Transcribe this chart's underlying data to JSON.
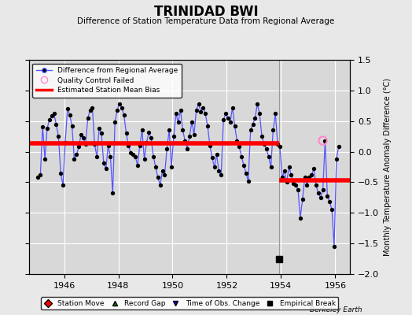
{
  "title": "TRINIDAD BWI",
  "subtitle": "Difference of Station Temperature Data from Regional Average",
  "ylabel": "Monthly Temperature Anomaly Difference (°C)",
  "background_color": "#e8e8e8",
  "plot_bg_color": "#d8d8d8",
  "grid_color": "#ffffff",
  "xlim": [
    1944.7,
    1956.55
  ],
  "ylim": [
    -2.0,
    1.5
  ],
  "yticks": [
    -2.0,
    -1.5,
    -1.0,
    -0.5,
    0.0,
    0.5,
    1.0,
    1.5
  ],
  "xticks": [
    1946,
    1948,
    1950,
    1952,
    1954,
    1956
  ],
  "break_year": 1953.92,
  "bias1": 0.13,
  "bias2": -0.47,
  "bias1_start": 1944.7,
  "bias1_end": 1953.92,
  "bias2_start": 1953.92,
  "bias2_end": 1956.55,
  "empirical_break_x": 1953.92,
  "empirical_break_y": -1.75,
  "qc_fail_x": 1955.54,
  "qc_fail_y": 0.18,
  "line_color": "#5555ff",
  "marker_color": "#000000",
  "bias_color": "#ff0000",
  "monthly_data": [
    [
      1945.042,
      -0.42
    ],
    [
      1945.125,
      -0.38
    ],
    [
      1945.208,
      0.41
    ],
    [
      1945.292,
      -0.12
    ],
    [
      1945.375,
      0.38
    ],
    [
      1945.458,
      0.52
    ],
    [
      1945.542,
      0.58
    ],
    [
      1945.625,
      0.62
    ],
    [
      1945.708,
      0.45
    ],
    [
      1945.792,
      0.25
    ],
    [
      1945.875,
      -0.35
    ],
    [
      1945.958,
      -0.55
    ],
    [
      1946.042,
      0.15
    ],
    [
      1946.125,
      0.7
    ],
    [
      1946.208,
      0.6
    ],
    [
      1946.292,
      0.42
    ],
    [
      1946.375,
      -0.12
    ],
    [
      1946.458,
      -0.05
    ],
    [
      1946.542,
      0.08
    ],
    [
      1946.625,
      0.28
    ],
    [
      1946.708,
      0.22
    ],
    [
      1946.792,
      0.12
    ],
    [
      1946.875,
      0.55
    ],
    [
      1946.958,
      0.68
    ],
    [
      1947.042,
      0.72
    ],
    [
      1947.125,
      0.12
    ],
    [
      1947.208,
      -0.08
    ],
    [
      1947.292,
      0.38
    ],
    [
      1947.375,
      0.3
    ],
    [
      1947.458,
      -0.18
    ],
    [
      1947.542,
      -0.28
    ],
    [
      1947.625,
      0.1
    ],
    [
      1947.708,
      -0.08
    ],
    [
      1947.792,
      -0.68
    ],
    [
      1947.875,
      0.48
    ],
    [
      1947.958,
      0.68
    ],
    [
      1948.042,
      0.78
    ],
    [
      1948.125,
      0.72
    ],
    [
      1948.208,
      0.6
    ],
    [
      1948.292,
      0.3
    ],
    [
      1948.375,
      0.1
    ],
    [
      1948.458,
      -0.02
    ],
    [
      1948.542,
      -0.05
    ],
    [
      1948.625,
      -0.08
    ],
    [
      1948.708,
      -0.22
    ],
    [
      1948.792,
      0.1
    ],
    [
      1948.875,
      0.35
    ],
    [
      1948.958,
      -0.12
    ],
    [
      1949.042,
      0.15
    ],
    [
      1949.125,
      0.32
    ],
    [
      1949.208,
      0.22
    ],
    [
      1949.292,
      -0.08
    ],
    [
      1949.375,
      -0.25
    ],
    [
      1949.458,
      -0.42
    ],
    [
      1949.542,
      -0.55
    ],
    [
      1949.625,
      -0.32
    ],
    [
      1949.708,
      -0.38
    ],
    [
      1949.792,
      0.05
    ],
    [
      1949.875,
      0.35
    ],
    [
      1949.958,
      -0.25
    ],
    [
      1950.042,
      0.25
    ],
    [
      1950.125,
      0.62
    ],
    [
      1950.208,
      0.48
    ],
    [
      1950.292,
      0.68
    ],
    [
      1950.375,
      0.35
    ],
    [
      1950.458,
      0.18
    ],
    [
      1950.542,
      0.05
    ],
    [
      1950.625,
      0.25
    ],
    [
      1950.708,
      0.48
    ],
    [
      1950.792,
      0.28
    ],
    [
      1950.875,
      0.68
    ],
    [
      1950.958,
      0.78
    ],
    [
      1951.042,
      0.65
    ],
    [
      1951.125,
      0.72
    ],
    [
      1951.208,
      0.62
    ],
    [
      1951.292,
      0.42
    ],
    [
      1951.375,
      0.1
    ],
    [
      1951.458,
      -0.1
    ],
    [
      1951.542,
      -0.25
    ],
    [
      1951.625,
      -0.05
    ],
    [
      1951.708,
      -0.32
    ],
    [
      1951.792,
      -0.38
    ],
    [
      1951.875,
      0.52
    ],
    [
      1951.958,
      0.62
    ],
    [
      1952.042,
      0.55
    ],
    [
      1952.125,
      0.48
    ],
    [
      1952.208,
      0.72
    ],
    [
      1952.292,
      0.42
    ],
    [
      1952.375,
      0.18
    ],
    [
      1952.458,
      0.08
    ],
    [
      1952.542,
      -0.08
    ],
    [
      1952.625,
      -0.22
    ],
    [
      1952.708,
      -0.35
    ],
    [
      1952.792,
      -0.48
    ],
    [
      1952.875,
      0.35
    ],
    [
      1952.958,
      0.45
    ],
    [
      1953.042,
      0.55
    ],
    [
      1953.125,
      0.78
    ],
    [
      1953.208,
      0.62
    ],
    [
      1953.292,
      0.25
    ],
    [
      1953.375,
      0.12
    ],
    [
      1953.458,
      0.05
    ],
    [
      1953.542,
      -0.08
    ],
    [
      1953.625,
      -0.25
    ],
    [
      1953.708,
      0.35
    ],
    [
      1953.792,
      0.62
    ],
    [
      1953.875,
      0.12
    ],
    [
      1953.958,
      0.08
    ],
    [
      1954.042,
      -0.42
    ],
    [
      1954.125,
      -0.32
    ],
    [
      1954.208,
      -0.5
    ],
    [
      1954.292,
      -0.25
    ],
    [
      1954.375,
      -0.38
    ],
    [
      1954.458,
      -0.52
    ],
    [
      1954.542,
      -0.55
    ],
    [
      1954.625,
      -0.62
    ],
    [
      1954.708,
      -1.08
    ],
    [
      1954.792,
      -0.78
    ],
    [
      1954.875,
      -0.42
    ],
    [
      1954.958,
      -0.55
    ],
    [
      1955.042,
      -0.42
    ],
    [
      1955.125,
      -0.38
    ],
    [
      1955.208,
      -0.28
    ],
    [
      1955.292,
      -0.55
    ],
    [
      1955.375,
      -0.68
    ],
    [
      1955.458,
      -0.75
    ],
    [
      1955.542,
      -0.62
    ],
    [
      1955.625,
      0.18
    ],
    [
      1955.708,
      -0.72
    ],
    [
      1955.792,
      -0.82
    ],
    [
      1955.875,
      -0.95
    ],
    [
      1955.958,
      -1.55
    ],
    [
      1956.042,
      -0.12
    ],
    [
      1956.125,
      0.08
    ]
  ]
}
